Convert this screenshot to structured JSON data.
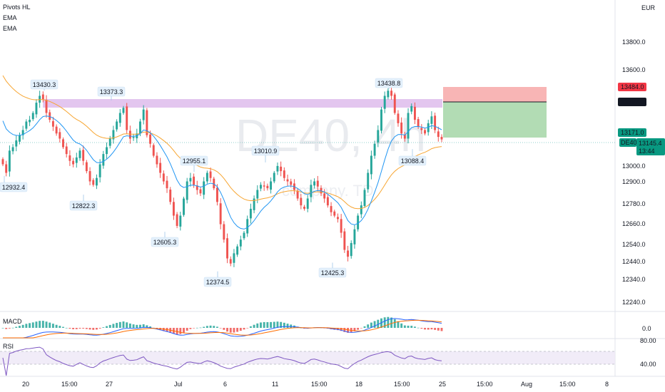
{
  "legend": {
    "items": [
      "Pivots HL",
      "EMA",
      "EMA"
    ]
  },
  "currency": "EUR",
  "watermark": {
    "symbol": "DE40, 4h",
    "sub": "company. TD"
  },
  "colors": {
    "up": "#26a69a",
    "down": "#ef5350",
    "ema_fast": "#2196f3",
    "ema_slow": "#f7a531",
    "zone": "#d9b3ea",
    "target": "#a5d6a7",
    "stop": "#f7a8a8",
    "macd": "#2962ff",
    "signal": "#ff6d00",
    "rsi": "#7e57c2",
    "price_tag": "#089981",
    "stop_tag": "#f23645"
  },
  "y_axis": {
    "ticks": [
      "13800.0",
      "13600.0",
      "13484.0",
      "13397.0",
      "13171.0",
      "13145.4",
      "13000.0",
      "12900.0",
      "12780.0",
      "12660.0",
      "12540.0",
      "12440.0",
      "12340.0",
      "12240.0"
    ]
  },
  "price_tags": {
    "stop": "13484.0",
    "entry": "13397.0",
    "target": "13171.0",
    "last": "13145.4",
    "countdown": "13:44",
    "symbol": "DE40"
  },
  "x_axis": {
    "ticks": [
      "20",
      "15:00",
      "27",
      "Jul",
      "6",
      "11",
      "15:00",
      "18",
      "15:00",
      "25",
      "15:00",
      "Aug",
      "15:00",
      "8"
    ]
  },
  "pivots": {
    "highs": [
      "13430.3",
      "13373.3",
      "12955.1",
      "13010.9",
      "13438.8"
    ],
    "lows": [
      "12932.4",
      "12822.3",
      "12605.3",
      "12374.5",
      "12425.3",
      "13088.4"
    ]
  },
  "macd": {
    "label": "MACD",
    "zero_label": "0.0"
  },
  "rsi": {
    "label": "RSI",
    "upper": "80.00",
    "lower": "40.00"
  },
  "chart_data": {
    "type": "candlestick",
    "symbol": "DE40",
    "timeframe": "4h",
    "currency": "EUR",
    "ylim": [
      12140,
      13960
    ],
    "closes": [
      13000,
      12950,
      13080,
      13100,
      13140,
      13170,
      13200,
      13250,
      13260,
      13300,
      13360,
      13400,
      13380,
      13300,
      13260,
      13220,
      13180,
      13150,
      13100,
      13060,
      13020,
      13000,
      13040,
      13080,
      13020,
      12960,
      12900,
      12880,
      12920,
      13000,
      13060,
      13100,
      13150,
      13200,
      13250,
      13300,
      13330,
      13200,
      13150,
      13160,
      13180,
      13250,
      13320,
      13170,
      13120,
      13050,
      13000,
      12950,
      12900,
      12860,
      12780,
      12700,
      12640,
      12700,
      12800,
      12900,
      12920,
      12880,
      12850,
      12830,
      12900,
      12950,
      12920,
      12860,
      12780,
      12650,
      12560,
      12450,
      12420,
      12480,
      12520,
      12560,
      12600,
      12680,
      12740,
      12800,
      12850,
      12880,
      12870,
      12860,
      12900,
      12950,
      12990,
      12960,
      12920,
      12900,
      12880,
      12850,
      12800,
      12760,
      12740,
      12800,
      12880,
      12900,
      12870,
      12830,
      12800,
      12760,
      12720,
      12700,
      12680,
      12600,
      12500,
      12460,
      12540,
      12620,
      12700,
      12760,
      12850,
      12950,
      13050,
      13120,
      13200,
      13320,
      13400,
      13430,
      13400,
      13300,
      13240,
      13180,
      13150,
      13300,
      13340,
      13260,
      13220,
      13200,
      13180,
      13240,
      13280,
      13200,
      13160,
      13145.4
    ],
    "ema_fast_last": 13145,
    "ema_slow_last": 13010,
    "resistance_zone": [
      13380,
      13440
    ],
    "position": {
      "stop": 13484.0,
      "entry": 13397.0,
      "target": 13171.0
    },
    "pivot_highs": [
      13430.3,
      13373.3,
      12955.1,
      13010.9,
      13438.8
    ],
    "pivot_lows": [
      12932.4,
      12822.3,
      12605.3,
      12374.5,
      12425.3,
      13088.4
    ],
    "rsi_bounds": [
      40,
      80
    ]
  }
}
